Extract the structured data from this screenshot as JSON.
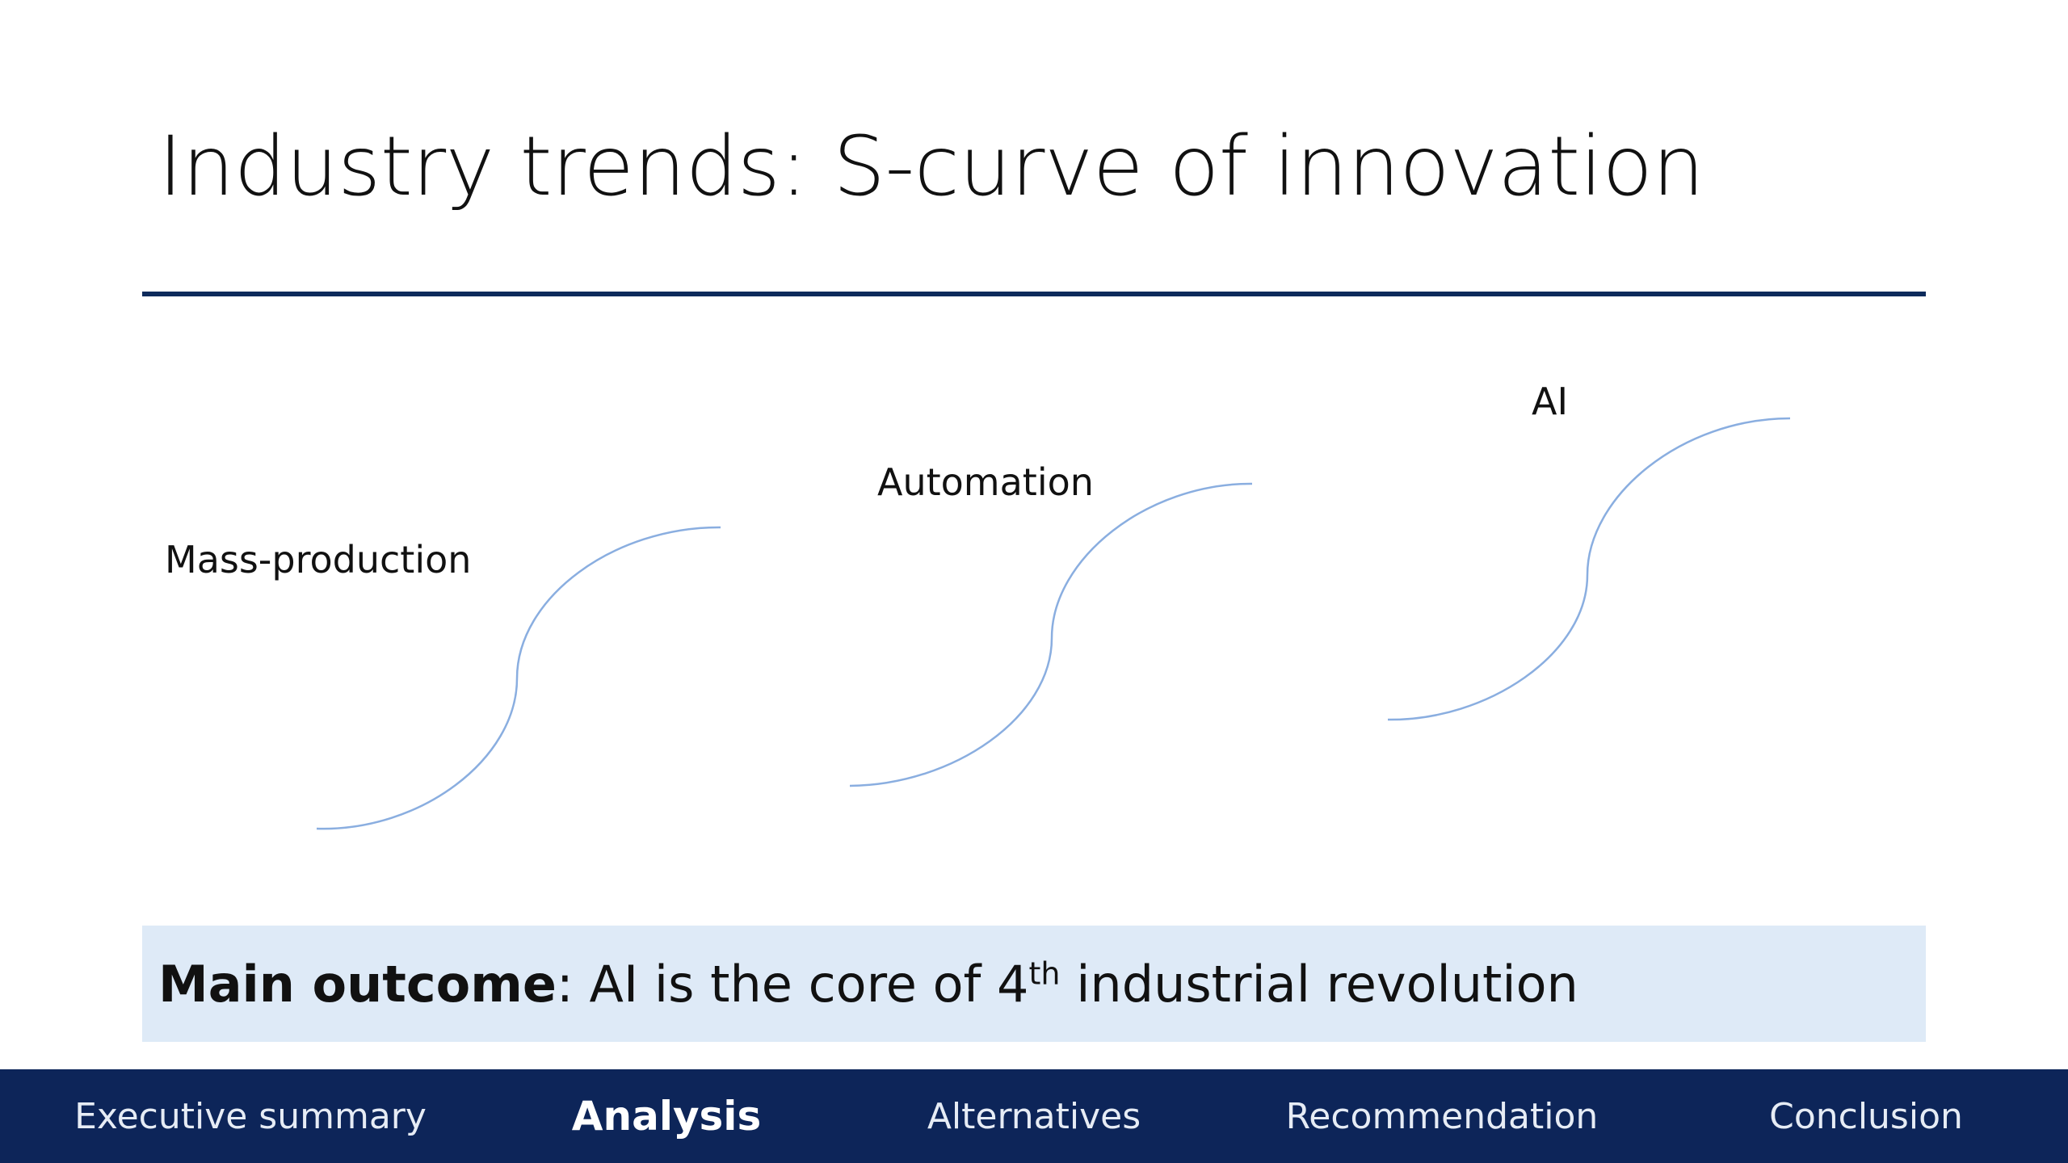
{
  "slide": {
    "title": "Industry trends: S-curve of innovation",
    "curves": [
      {
        "label": "Mass-production"
      },
      {
        "label": "Automation"
      },
      {
        "label": "AI"
      }
    ],
    "outcome": {
      "bold": "Main outcome",
      "text_before_sup": ": AI is the core of 4",
      "superscript": "th",
      "text_after_sup": " industrial revolution"
    }
  },
  "nav": {
    "items": [
      {
        "label": "Executive summary",
        "active": false
      },
      {
        "label": "Analysis",
        "active": true
      },
      {
        "label": "Alternatives",
        "active": false
      },
      {
        "label": "Recommendation",
        "active": false
      },
      {
        "label": "Conclusion",
        "active": false
      }
    ]
  },
  "colors": {
    "accent_rule": "#0d2b5c",
    "nav_background": "#0d2559",
    "outcome_background": "#deeaf7",
    "curve_stroke": "#8aaee0"
  }
}
